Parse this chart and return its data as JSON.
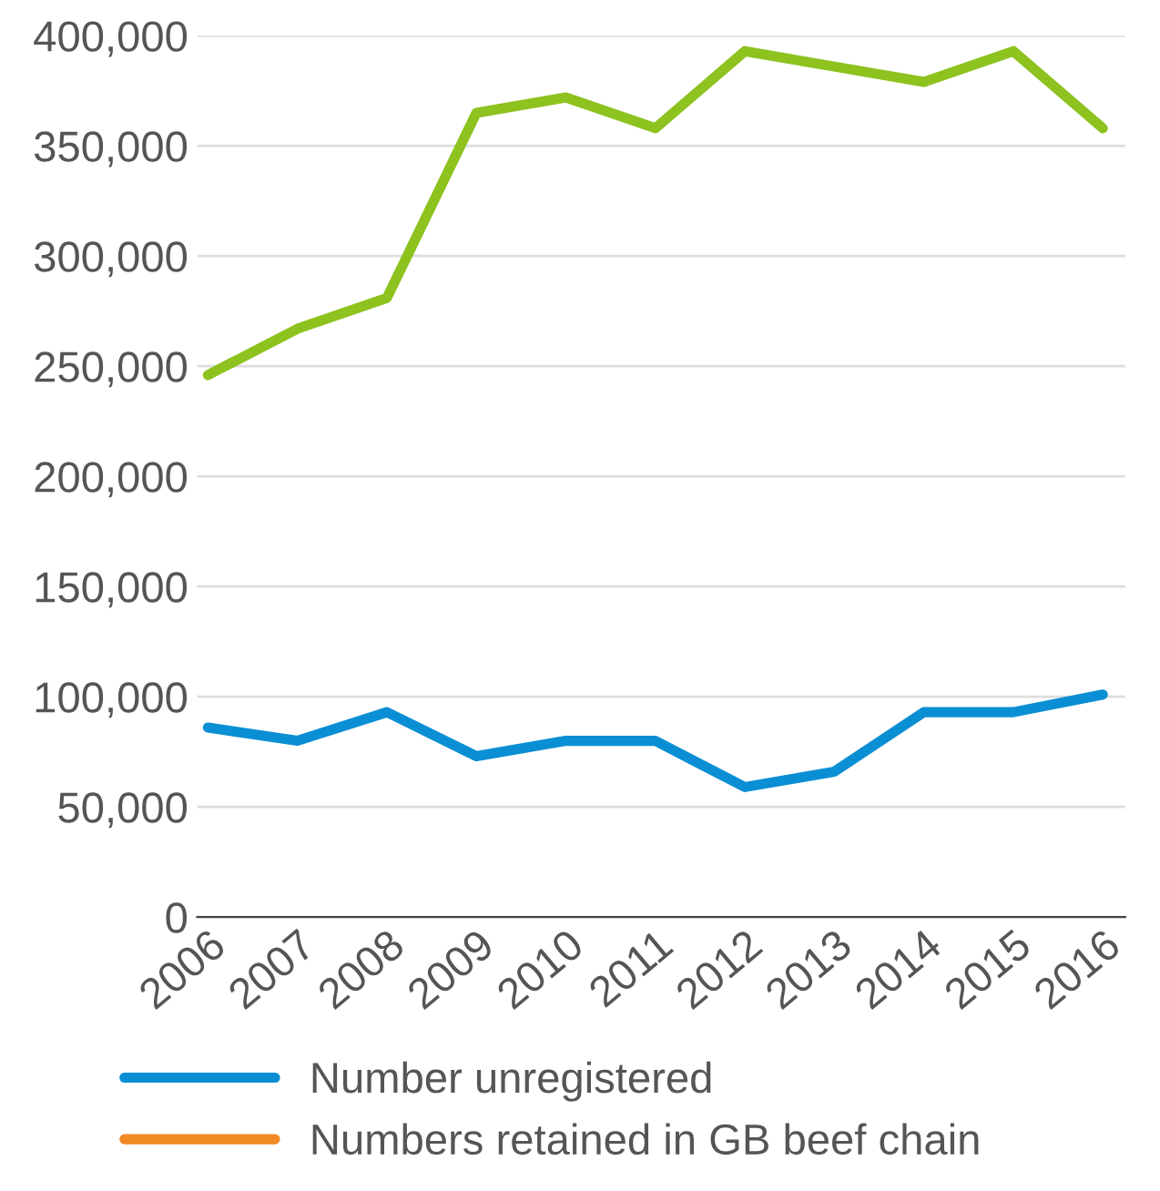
{
  "chart_data": {
    "type": "line",
    "categories": [
      "2006",
      "2007",
      "2008",
      "2009",
      "2010",
      "2011",
      "2012",
      "2013",
      "2014",
      "2015",
      "2016"
    ],
    "series": [
      {
        "name": "Number unregistered",
        "color": "#0a8fd4",
        "values": [
          86000,
          80000,
          93000,
          73000,
          80000,
          80000,
          59000,
          66000,
          93000,
          93000,
          101000
        ]
      },
      {
        "name": "Numbers retained in GB beef chain",
        "color": "#f08a24",
        "values": [
          null,
          null,
          null,
          null,
          null,
          null,
          null,
          null,
          null,
          null,
          null
        ]
      },
      {
        "color": "#8dc21f",
        "values": [
          246000,
          267000,
          281000,
          365000,
          372000,
          358000,
          393000,
          386000,
          379000,
          393000,
          358000
        ]
      }
    ],
    "ylim": [
      0,
      400000
    ],
    "yticks": [
      {
        "value": 0,
        "label": "0"
      },
      {
        "value": 50000,
        "label": "50,000"
      },
      {
        "value": 100000,
        "label": "100,000"
      },
      {
        "value": 150000,
        "label": "150,000"
      },
      {
        "value": 200000,
        "label": "200,000"
      },
      {
        "value": 250000,
        "label": "250,000"
      },
      {
        "value": 300000,
        "label": "300,000"
      },
      {
        "value": 350000,
        "label": "350,000"
      },
      {
        "value": 400000,
        "label": "400,000"
      }
    ],
    "grid": "y",
    "legend": "bottom",
    "marker": "none",
    "line_style": "solid"
  }
}
